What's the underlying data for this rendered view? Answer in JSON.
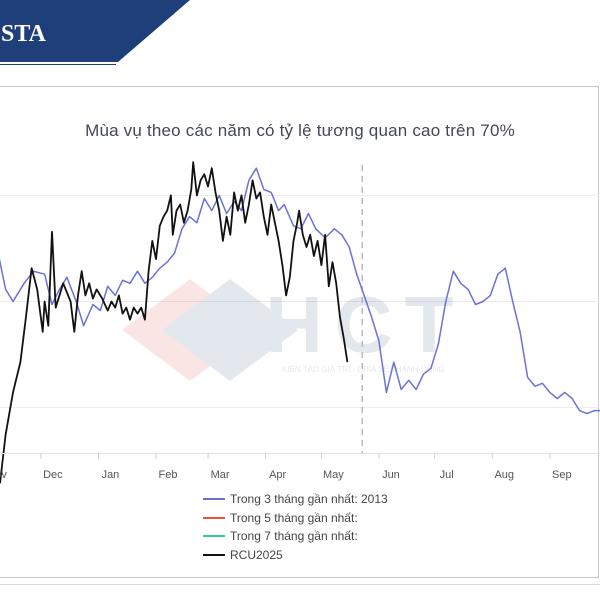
{
  "header": {
    "banner_text": "STA",
    "banner_color": "#1f3f7a"
  },
  "watermark": {
    "logo_text": "HCT",
    "tagline": "KIẾN TẠO GIÁ TRỊ - CHIA SẺ THÀNH CÔNG"
  },
  "chart_data": {
    "type": "line",
    "title": "Mùa vụ theo các năm có tỷ lệ tương quan cao trên 70%",
    "xlabel": "",
    "ylabel": "",
    "x_tick_labels": [
      "Nov",
      "Dec",
      "Jan",
      "Feb",
      "Mar",
      "Apr",
      "May",
      "Jun",
      "Jul",
      "Aug",
      "Sep"
    ],
    "x_axis": "day index from the start of the visible window (Nov 1 = 0)",
    "xlim": [
      0,
      323
    ],
    "ylim": [
      0,
      100
    ],
    "marker_line_day": 195,
    "grid": true,
    "legend_position": "bottom-center",
    "series": [
      {
        "name": "Trong 3 tháng gần nhất: 2013",
        "color": "#6b72d6",
        "points": [
          [
            -8,
            77
          ],
          [
            -3,
            72
          ],
          [
            3,
            54
          ],
          [
            7,
            50
          ],
          [
            13,
            56
          ],
          [
            18,
            60
          ],
          [
            24,
            59
          ],
          [
            28,
            49
          ],
          [
            32,
            54
          ],
          [
            36,
            58
          ],
          [
            41,
            50
          ],
          [
            45,
            42
          ],
          [
            50,
            49
          ],
          [
            54,
            47
          ],
          [
            58,
            55
          ],
          [
            62,
            52
          ],
          [
            66,
            57
          ],
          [
            70,
            56
          ],
          [
            74,
            60
          ],
          [
            78,
            56
          ],
          [
            82,
            58
          ],
          [
            86,
            61
          ],
          [
            90,
            63
          ],
          [
            94,
            66
          ],
          [
            98,
            74
          ],
          [
            102,
            78
          ],
          [
            106,
            76
          ],
          [
            110,
            84
          ],
          [
            114,
            80
          ],
          [
            118,
            85
          ],
          [
            122,
            79
          ],
          [
            126,
            83
          ],
          [
            130,
            80
          ],
          [
            134,
            90
          ],
          [
            138,
            94
          ],
          [
            142,
            87
          ],
          [
            146,
            86
          ],
          [
            150,
            80
          ],
          [
            153,
            82
          ],
          [
            158,
            75
          ],
          [
            162,
            74
          ],
          [
            166,
            79
          ],
          [
            170,
            74
          ],
          [
            175,
            71
          ],
          [
            180,
            74
          ],
          [
            184,
            72
          ],
          [
            188,
            68
          ],
          [
            192,
            59
          ],
          [
            196,
            52
          ],
          [
            200,
            45
          ],
          [
            204,
            37
          ],
          [
            208,
            20
          ],
          [
            212,
            30
          ],
          [
            216,
            21
          ],
          [
            220,
            24
          ],
          [
            224,
            21
          ],
          [
            228,
            26
          ],
          [
            232,
            28
          ],
          [
            236,
            36
          ],
          [
            240,
            50
          ],
          [
            244,
            60
          ],
          [
            248,
            56
          ],
          [
            252,
            54
          ],
          [
            256,
            49
          ],
          [
            260,
            50
          ],
          [
            264,
            52
          ],
          [
            268,
            59
          ],
          [
            272,
            61
          ],
          [
            276,
            50
          ],
          [
            280,
            40
          ],
          [
            284,
            25
          ],
          [
            288,
            22
          ],
          [
            292,
            23
          ],
          [
            296,
            20
          ],
          [
            300,
            18
          ],
          [
            304,
            20
          ],
          [
            308,
            18
          ],
          [
            312,
            14
          ],
          [
            316,
            13
          ],
          [
            320,
            14
          ],
          [
            323,
            14
          ]
        ]
      },
      {
        "name": "Trong 5 tháng gần nhất:",
        "color": "#f0503c",
        "points": []
      },
      {
        "name": "Trong 7 tháng gần nhất:",
        "color": "#2ecc9a",
        "points": []
      },
      {
        "name": "RCU2025",
        "color": "#111111",
        "points": [
          [
            0,
            -10
          ],
          [
            3,
            6
          ],
          [
            7,
            20
          ],
          [
            11,
            30
          ],
          [
            14,
            45
          ],
          [
            17,
            61
          ],
          [
            20,
            54
          ],
          [
            23,
            40
          ],
          [
            24,
            50
          ],
          [
            26,
            42
          ],
          [
            28,
            73
          ],
          [
            30,
            48
          ],
          [
            34,
            56
          ],
          [
            38,
            50
          ],
          [
            40,
            40
          ],
          [
            42,
            52
          ],
          [
            44,
            60
          ],
          [
            46,
            52
          ],
          [
            48,
            56
          ],
          [
            50,
            51
          ],
          [
            52,
            54
          ],
          [
            55,
            51
          ],
          [
            58,
            47
          ],
          [
            60,
            50
          ],
          [
            62,
            48
          ],
          [
            64,
            52
          ],
          [
            66,
            46
          ],
          [
            68,
            48
          ],
          [
            70,
            44
          ],
          [
            72,
            48
          ],
          [
            74,
            46
          ],
          [
            76,
            48
          ],
          [
            78,
            44
          ],
          [
            80,
            60
          ],
          [
            82,
            70
          ],
          [
            84,
            64
          ],
          [
            86,
            75
          ],
          [
            88,
            78
          ],
          [
            90,
            80
          ],
          [
            92,
            85
          ],
          [
            93,
            72
          ],
          [
            95,
            80
          ],
          [
            97,
            82
          ],
          [
            99,
            76
          ],
          [
            101,
            80
          ],
          [
            103,
            87
          ],
          [
            104,
            96
          ],
          [
            106,
            85
          ],
          [
            108,
            90
          ],
          [
            110,
            92
          ],
          [
            112,
            88
          ],
          [
            114,
            94
          ],
          [
            116,
            86
          ],
          [
            118,
            80
          ],
          [
            120,
            70
          ],
          [
            122,
            78
          ],
          [
            124,
            72
          ],
          [
            126,
            86
          ],
          [
            128,
            80
          ],
          [
            130,
            85
          ],
          [
            132,
            76
          ],
          [
            134,
            82
          ],
          [
            136,
            90
          ],
          [
            138,
            84
          ],
          [
            140,
            86
          ],
          [
            142,
            78
          ],
          [
            144,
            72
          ],
          [
            146,
            82
          ],
          [
            148,
            76
          ],
          [
            150,
            70
          ],
          [
            152,
            62
          ],
          [
            154,
            52
          ],
          [
            156,
            58
          ],
          [
            158,
            70
          ],
          [
            160,
            76
          ],
          [
            161,
            80
          ],
          [
            163,
            72
          ],
          [
            165,
            68
          ],
          [
            167,
            72
          ],
          [
            169,
            65
          ],
          [
            171,
            70
          ],
          [
            173,
            62
          ],
          [
            175,
            72
          ],
          [
            177,
            55
          ],
          [
            179,
            63
          ],
          [
            181,
            56
          ],
          [
            183,
            45
          ],
          [
            185,
            38
          ],
          [
            187,
            30
          ]
        ]
      }
    ]
  }
}
